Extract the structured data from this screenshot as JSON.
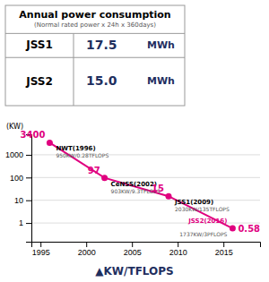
{
  "chart_data": {
    "type": "line",
    "table": {
      "title": "Annual power consumption",
      "subtitle": "(Normal rated power x 24h x 360days)",
      "row_labels": [
        "JSS1",
        "JSS2"
      ],
      "values": [
        17.5,
        15.0
      ],
      "value_labels": [
        "17.5",
        "15.0"
      ],
      "units": [
        "MWh",
        "MWh"
      ]
    },
    "ylabel": "(KW)",
    "x": [
      1996,
      2002,
      2009,
      2016
    ],
    "series": [
      {
        "values": [
          3400,
          97,
          15,
          0.58
        ],
        "color": "#e0007f",
        "marker": "circle"
      }
    ],
    "data_labels": true,
    "point_names": [
      "NWT(1996)",
      "CeNSS(2002)",
      "JSS1(2009)",
      "JSS2(2016)"
    ],
    "point_details": [
      "950KW/0.28TFLOPS",
      "903KW/9.3TFLOPS",
      "2030KW/135TFLOPS",
      "1737KW/3PFLOPS"
    ],
    "xlim": [
      1994,
      2019
    ],
    "ylim": [
      0.15,
      8000
    ],
    "xticks": [
      1995,
      2000,
      2005,
      2010,
      2015
    ],
    "yticks": [
      1,
      10,
      100,
      1000
    ],
    "log": "y",
    "grid": true,
    "footer": "▲KW/TFLOPS"
  }
}
